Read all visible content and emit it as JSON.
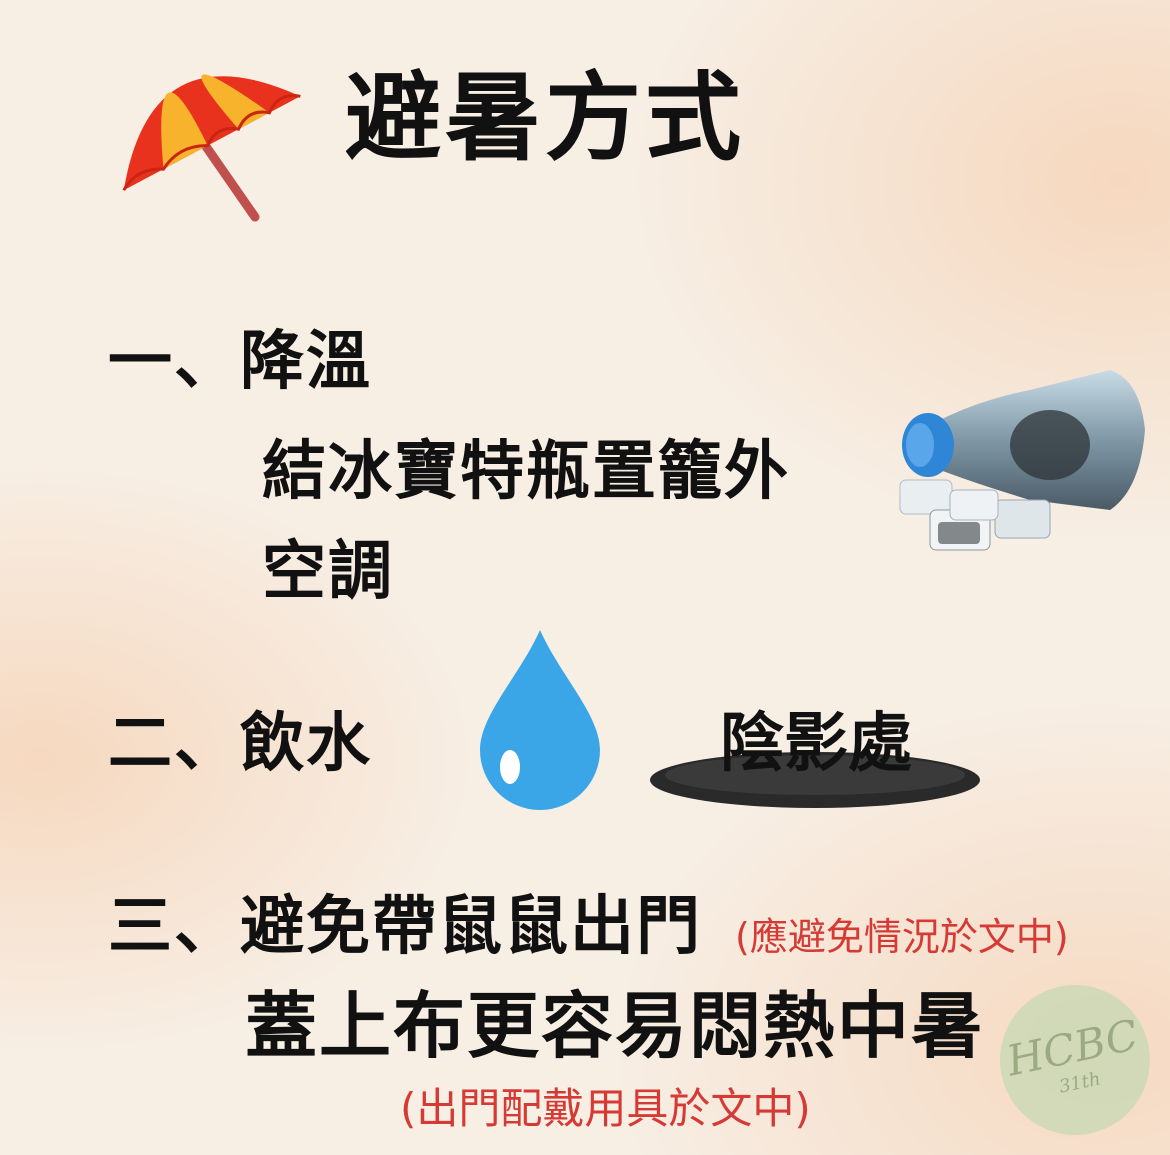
{
  "title": "避暑方式",
  "sections": [
    {
      "number": "一、",
      "heading": "降溫",
      "lines": [
        "結冰寶特瓶置籠外",
        "空調"
      ]
    },
    {
      "number": "二、",
      "heading": "飲水",
      "extra": "陰影處"
    },
    {
      "number": "三、",
      "heading": "避免帶鼠鼠出門",
      "note": "(應避免情況於文中)",
      "lines": [
        "蓋上布更容易悶熱中暑"
      ],
      "footnote": "(出門配戴用具於文中)"
    }
  ],
  "watermark": {
    "text": "HCBC",
    "sub": "31th"
  },
  "icons": {
    "umbrella": "beach-umbrella-icon",
    "bottle": "frozen-bottle-icon",
    "drop": "water-drop-icon",
    "shadow": "shadow-icon"
  },
  "colors": {
    "text": "#111111",
    "note": "#d63a35",
    "drop": "#3aa6e8",
    "umbrella_red": "#e8321e",
    "umbrella_yellow": "#f7b32b"
  }
}
